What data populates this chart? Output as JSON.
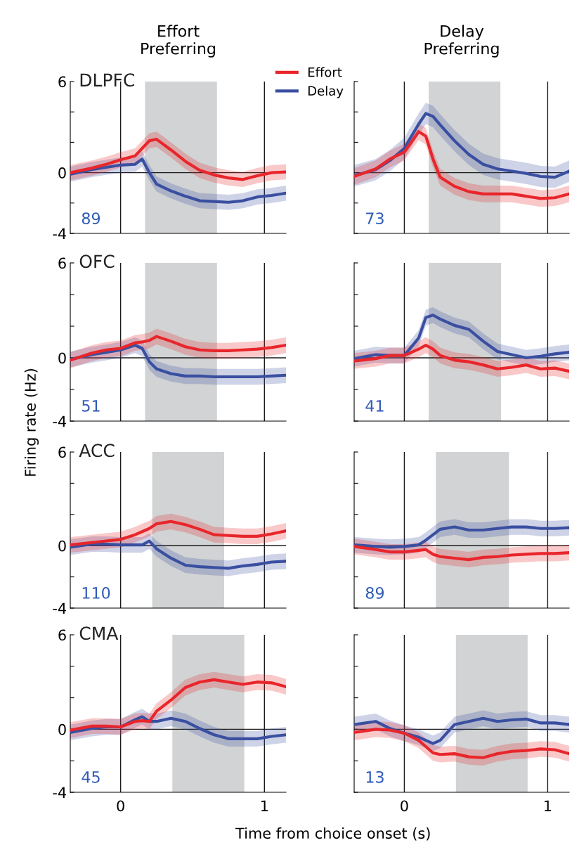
{
  "chart_data": [
    {
      "type": "line",
      "title": "Effort\nPreferring",
      "legend": "top right",
      "annotations": [
        "DLPFC",
        "89"
      ],
      "tick_labels": "y",
      "x": [
        -0.35,
        -0.2,
        -0.1,
        0,
        0.1,
        0.15,
        0.2,
        0.25,
        0.35,
        0.45,
        0.55,
        0.65,
        0.75,
        0.85,
        0.95,
        1.05,
        1.15
      ],
      "xlim": [
        -0.35,
        1.15
      ],
      "xticks": [
        0,
        1
      ],
      "ylim": [
        -4,
        6
      ],
      "yticks": [
        -4,
        {
          "value": -2,
          "label": null
        },
        0,
        {
          "value": 2,
          "label": null
        },
        {
          "value": 4,
          "label": null
        },
        6
      ],
      "ref_lines": [
        {
          "axis": "x",
          "value": 0
        },
        {
          "axis": "x",
          "value": 1
        },
        {
          "axis": "y",
          "value": 0
        }
      ],
      "bands": [
        {
          "axis": "x",
          "from": 0.17,
          "to": 0.67,
          "color": "#d1d3d4"
        }
      ],
      "series": [
        {
          "name": "Delay",
          "color": "#3a4fa0",
          "values": [
            -0.1,
            0.2,
            0.35,
            0.5,
            0.55,
            0.9,
            0,
            -0.75,
            -1.2,
            -1.55,
            -1.85,
            -1.9,
            -1.95,
            -1.85,
            -1.6,
            -1.5,
            -1.35
          ],
          "lower": [
            -0.6,
            -0.3,
            -0.15,
            0,
            0.05,
            0.4,
            -0.5,
            -1.25,
            -1.7,
            -2.05,
            -2.35,
            -2.4,
            -2.45,
            -2.35,
            -2.1,
            -2,
            -1.85
          ],
          "upper": [
            0.4,
            0.7,
            0.85,
            1,
            1.05,
            1.4,
            0.5,
            -0.25,
            -0.7,
            -1.05,
            -1.35,
            -1.4,
            -1.45,
            -1.35,
            -1.1,
            -1,
            -0.85
          ]
        },
        {
          "name": "Effort",
          "color": "#e8262b",
          "values": [
            0,
            0.3,
            0.55,
            0.85,
            1.1,
            1.6,
            2.1,
            2.2,
            1.5,
            0.75,
            0.15,
            -0.15,
            -0.35,
            -0.45,
            -0.2,
            0,
            0.05
          ],
          "lower": [
            -0.5,
            -0.2,
            0.05,
            0.35,
            0.6,
            1.1,
            1.6,
            1.7,
            1.0,
            0.25,
            -0.35,
            -0.65,
            -0.85,
            -0.95,
            -0.7,
            -0.5,
            -0.45
          ],
          "upper": [
            0.5,
            0.8,
            1.05,
            1.35,
            1.6,
            2.1,
            2.6,
            2.7,
            2.0,
            1.25,
            0.65,
            0.35,
            0.15,
            0.05,
            0.3,
            0.5,
            0.55
          ]
        }
      ]
    },
    {
      "type": "line",
      "title": "Delay\nPreferring",
      "annotations": [
        "73"
      ],
      "tick_labels": false,
      "x": [
        -0.35,
        -0.2,
        -0.1,
        0,
        0.1,
        0.15,
        0.2,
        0.25,
        0.35,
        0.45,
        0.55,
        0.65,
        0.75,
        0.85,
        0.95,
        1.05,
        1.15
      ],
      "xlim": [
        -0.35,
        1.15
      ],
      "xticks": [
        0,
        1
      ],
      "ylim": [
        -4,
        6
      ],
      "yticks": [
        -4,
        {
          "value": -2,
          "label": null
        },
        0,
        {
          "value": 2,
          "label": null
        },
        {
          "value": 4,
          "label": null
        },
        6
      ],
      "ref_lines": [
        {
          "axis": "x",
          "value": 0
        },
        {
          "axis": "x",
          "value": 1
        },
        {
          "axis": "y",
          "value": 0
        }
      ],
      "bands": [
        {
          "axis": "x",
          "from": 0.17,
          "to": 0.67,
          "color": "#d1d3d4"
        }
      ],
      "series": [
        {
          "color": "#3a4fa0",
          "values": [
            -0.2,
            0.2,
            0.8,
            1.6,
            3.2,
            3.9,
            3.7,
            3.15,
            2.1,
            1.2,
            0.55,
            0.25,
            0.1,
            -0.05,
            -0.25,
            -0.3,
            0.1
          ],
          "lower": [
            -0.9,
            -0.5,
            0.1,
            0.9,
            2.5,
            3.2,
            3,
            2.45,
            1.4,
            0.5,
            -0.15,
            -0.45,
            -0.6,
            -0.75,
            -0.95,
            -1,
            -0.6
          ],
          "upper": [
            0.5,
            0.9,
            1.5,
            2.3,
            3.9,
            4.6,
            4.4,
            3.85,
            2.8,
            1.9,
            1.25,
            0.95,
            0.8,
            0.65,
            0.45,
            0.4,
            0.8
          ]
        },
        {
          "color": "#e8262b",
          "values": [
            -0.25,
            0.25,
            0.9,
            1.35,
            2.7,
            2.4,
            0.9,
            -0.3,
            -0.9,
            -1.25,
            -1.4,
            -1.4,
            -1.4,
            -1.55,
            -1.7,
            -1.65,
            -1.4
          ],
          "lower": [
            -0.8,
            -0.3,
            0.35,
            0.8,
            2.15,
            1.85,
            0.35,
            -0.85,
            -1.45,
            -1.8,
            -1.95,
            -1.95,
            -1.95,
            -2.1,
            -2.25,
            -2.2,
            -1.95
          ],
          "upper": [
            0.3,
            0.8,
            1.45,
            1.9,
            3.25,
            2.95,
            1.45,
            0.25,
            -0.35,
            -0.7,
            -0.85,
            -0.85,
            -0.85,
            -1,
            -1.15,
            -1.1,
            -0.85
          ]
        }
      ]
    },
    {
      "type": "line",
      "ylabel": "Firing rate (Hz)",
      "annotations": [
        "OFC",
        "51"
      ],
      "tick_labels": "y",
      "x": [
        -0.35,
        -0.2,
        -0.1,
        0,
        0.1,
        0.15,
        0.2,
        0.25,
        0.35,
        0.45,
        0.55,
        0.65,
        0.75,
        0.85,
        0.95,
        1.05,
        1.15
      ],
      "xlim": [
        -0.35,
        1.15
      ],
      "xticks": [
        0,
        1
      ],
      "ylim": [
        -4,
        6
      ],
      "yticks": [
        -4,
        {
          "value": -2,
          "label": null
        },
        0,
        {
          "value": 2,
          "label": null
        },
        {
          "value": 4,
          "label": null
        },
        6
      ],
      "ref_lines": [
        {
          "axis": "x",
          "value": 0
        },
        {
          "axis": "x",
          "value": 1
        },
        {
          "axis": "y",
          "value": 0
        }
      ],
      "bands": [
        {
          "axis": "x",
          "from": 0.17,
          "to": 0.67,
          "color": "#d1d3d4"
        }
      ],
      "series": [
        {
          "color": "#3a4fa0",
          "values": [
            -0.1,
            0.2,
            0.35,
            0.5,
            0.8,
            0.6,
            -0.25,
            -0.7,
            -1,
            -1.15,
            -1.15,
            -1.2,
            -1.2,
            -1.2,
            -1.2,
            -1.15,
            -1.1
          ],
          "lower": [
            -0.6,
            -0.3,
            -0.15,
            0,
            0.3,
            0.1,
            -0.75,
            -1.2,
            -1.5,
            -1.65,
            -1.65,
            -1.7,
            -1.7,
            -1.7,
            -1.7,
            -1.65,
            -1.6
          ],
          "upper": [
            0.4,
            0.7,
            0.85,
            1,
            1.3,
            1.1,
            0.25,
            -0.2,
            -0.5,
            -0.65,
            -0.65,
            -0.7,
            -0.7,
            -0.7,
            -0.7,
            -0.65,
            -0.6
          ]
        },
        {
          "color": "#e8262b",
          "values": [
            -0.15,
            0.3,
            0.5,
            0.6,
            0.95,
            1,
            1.1,
            1.35,
            1.05,
            0.7,
            0.5,
            0.45,
            0.45,
            0.5,
            0.55,
            0.65,
            0.8
          ],
          "lower": [
            -0.65,
            -0.2,
            0,
            0.1,
            0.45,
            0.5,
            0.6,
            0.85,
            0.55,
            0.2,
            0,
            -0.05,
            -0.05,
            0,
            0.05,
            0.15,
            0.3
          ],
          "upper": [
            0.35,
            0.8,
            1,
            1.1,
            1.45,
            1.5,
            1.6,
            1.85,
            1.55,
            1.2,
            1,
            0.95,
            0.95,
            1,
            1.05,
            1.15,
            1.3
          ]
        }
      ]
    },
    {
      "type": "line",
      "annotations": [
        "41"
      ],
      "tick_labels": false,
      "x": [
        -0.35,
        -0.2,
        -0.1,
        0,
        0.1,
        0.15,
        0.2,
        0.25,
        0.35,
        0.45,
        0.55,
        0.65,
        0.75,
        0.85,
        0.95,
        1.05,
        1.15
      ],
      "xlim": [
        -0.35,
        1.15
      ],
      "xticks": [
        0,
        1
      ],
      "ylim": [
        -4,
        6
      ],
      "yticks": [
        -4,
        {
          "value": -2,
          "label": null
        },
        0,
        {
          "value": 2,
          "label": null
        },
        {
          "value": 4,
          "label": null
        },
        6
      ],
      "ref_lines": [
        {
          "axis": "x",
          "value": 0
        },
        {
          "axis": "x",
          "value": 1
        },
        {
          "axis": "y",
          "value": 0
        }
      ],
      "bands": [
        {
          "axis": "x",
          "from": 0.17,
          "to": 0.675,
          "color": "#d1d3d4"
        }
      ],
      "series": [
        {
          "color": "#3a4fa0",
          "values": [
            -0.05,
            0.2,
            0.15,
            0.15,
            1.25,
            2.55,
            2.7,
            2.45,
            2.05,
            1.8,
            1.05,
            0.4,
            0.2,
            0,
            0.1,
            0.25,
            0.35
          ],
          "lower": [
            -0.55,
            -0.3,
            -0.35,
            -0.35,
            0.75,
            2.05,
            2.2,
            1.95,
            1.55,
            1.3,
            0.55,
            -0.1,
            -0.3,
            -0.5,
            -0.4,
            -0.25,
            -0.15
          ],
          "upper": [
            0.45,
            0.7,
            0.65,
            0.65,
            1.75,
            3.05,
            3.2,
            2.95,
            2.55,
            2.3,
            1.55,
            0.9,
            0.7,
            0.5,
            0.6,
            0.75,
            0.85
          ]
        },
        {
          "color": "#e8262b",
          "values": [
            -0.2,
            -0.05,
            0.15,
            0.15,
            0.55,
            0.8,
            0.55,
            0.15,
            -0.15,
            -0.25,
            -0.45,
            -0.7,
            -0.6,
            -0.45,
            -0.7,
            -0.65,
            -0.85
          ],
          "lower": [
            -0.7,
            -0.55,
            -0.35,
            -0.35,
            0.05,
            0.3,
            0.05,
            -0.35,
            -0.65,
            -0.75,
            -0.95,
            -1.2,
            -1.1,
            -0.95,
            -1.2,
            -1.15,
            -1.35
          ],
          "upper": [
            0.3,
            0.45,
            0.65,
            0.65,
            1.05,
            1.3,
            1.05,
            0.65,
            0.35,
            0.25,
            0.05,
            -0.2,
            -0.1,
            0.05,
            -0.2,
            -0.15,
            -0.35
          ]
        }
      ]
    },
    {
      "type": "line",
      "annotations": [
        "ACC",
        "110"
      ],
      "tick_labels": "y",
      "x": [
        -0.35,
        -0.2,
        -0.1,
        0,
        0.1,
        0.15,
        0.2,
        0.25,
        0.35,
        0.45,
        0.55,
        0.65,
        0.75,
        0.85,
        0.95,
        1.05,
        1.15
      ],
      "xlim": [
        -0.35,
        1.15
      ],
      "xticks": [
        0,
        1
      ],
      "ylim": [
        -4,
        6
      ],
      "yticks": [
        -4,
        {
          "value": -2,
          "label": null
        },
        0,
        {
          "value": 2,
          "label": null
        },
        {
          "value": 4,
          "label": null
        },
        6
      ],
      "ref_lines": [
        {
          "axis": "x",
          "value": 0
        },
        {
          "axis": "x",
          "value": 1
        },
        {
          "axis": "y",
          "value": 0
        }
      ],
      "bands": [
        {
          "axis": "x",
          "from": 0.22,
          "to": 0.72,
          "color": "#d1d3d4"
        }
      ],
      "series": [
        {
          "color": "#3a4fa0",
          "values": [
            -0.1,
            0.1,
            0.1,
            0.05,
            0.05,
            0.05,
            0.3,
            -0.2,
            -0.8,
            -1.25,
            -1.35,
            -1.4,
            -1.45,
            -1.3,
            -1.2,
            -1.05,
            -1
          ],
          "lower": [
            -0.6,
            -0.4,
            -0.4,
            -0.45,
            -0.45,
            -0.45,
            -0.2,
            -0.7,
            -1.3,
            -1.75,
            -1.85,
            -1.9,
            -1.95,
            -1.8,
            -1.7,
            -1.55,
            -1.5
          ],
          "upper": [
            0.4,
            0.6,
            0.6,
            0.55,
            0.55,
            0.55,
            0.8,
            0.3,
            -0.3,
            -0.75,
            -0.85,
            -0.9,
            -0.95,
            -0.8,
            -0.7,
            -0.55,
            -0.5
          ]
        },
        {
          "color": "#e8262b",
          "values": [
            0.05,
            0.2,
            0.3,
            0.4,
            0.7,
            0.9,
            1.1,
            1.4,
            1.55,
            1.35,
            1.05,
            0.7,
            0.65,
            0.6,
            0.6,
            0.75,
            0.95
          ],
          "lower": [
            -0.45,
            -0.3,
            -0.2,
            -0.1,
            0.2,
            0.4,
            0.6,
            0.9,
            1.05,
            0.85,
            0.55,
            0.2,
            0.15,
            0.1,
            0.1,
            0.25,
            0.45
          ],
          "upper": [
            0.55,
            0.7,
            0.8,
            0.9,
            1.2,
            1.4,
            1.6,
            1.9,
            2.05,
            1.85,
            1.55,
            1.2,
            1.15,
            1.1,
            1.1,
            1.25,
            1.45
          ]
        }
      ]
    },
    {
      "type": "line",
      "annotations": [
        "89"
      ],
      "tick_labels": false,
      "x": [
        -0.35,
        -0.2,
        -0.1,
        0,
        0.1,
        0.15,
        0.2,
        0.25,
        0.35,
        0.45,
        0.55,
        0.65,
        0.75,
        0.85,
        0.95,
        1.05,
        1.15
      ],
      "xlim": [
        -0.35,
        1.15
      ],
      "xticks": [
        0,
        1
      ],
      "ylim": [
        -4,
        6
      ],
      "yticks": [
        -4,
        {
          "value": -2,
          "label": null
        },
        0,
        {
          "value": 2,
          "label": null
        },
        {
          "value": 4,
          "label": null
        },
        6
      ],
      "ref_lines": [
        {
          "axis": "x",
          "value": 0
        },
        {
          "axis": "x",
          "value": 1
        },
        {
          "axis": "y",
          "value": 0
        }
      ],
      "bands": [
        {
          "axis": "x",
          "from": 0.22,
          "to": 0.73,
          "color": "#d1d3d4"
        }
      ],
      "series": [
        {
          "color": "#3a4fa0",
          "values": [
            0.05,
            -0.05,
            -0.1,
            -0.05,
            0.05,
            0.35,
            0.7,
            1.05,
            1.2,
            1,
            1,
            1.1,
            1.2,
            1.2,
            1.1,
            1.1,
            1.15
          ],
          "lower": [
            -0.45,
            -0.55,
            -0.6,
            -0.55,
            -0.45,
            -0.15,
            0.2,
            0.55,
            0.7,
            0.5,
            0.5,
            0.6,
            0.7,
            0.7,
            0.6,
            0.6,
            0.65
          ],
          "upper": [
            0.55,
            0.45,
            0.4,
            0.45,
            0.55,
            0.85,
            1.2,
            1.55,
            1.7,
            1.5,
            1.5,
            1.6,
            1.7,
            1.7,
            1.6,
            1.6,
            1.65
          ]
        },
        {
          "color": "#e8262b",
          "values": [
            -0.05,
            -0.25,
            -0.4,
            -0.4,
            -0.3,
            -0.25,
            -0.55,
            -0.7,
            -0.8,
            -0.9,
            -0.75,
            -0.7,
            -0.6,
            -0.55,
            -0.5,
            -0.5,
            -0.45
          ],
          "lower": [
            -0.55,
            -0.75,
            -0.9,
            -0.9,
            -0.8,
            -0.75,
            -1.05,
            -1.2,
            -1.3,
            -1.4,
            -1.25,
            -1.2,
            -1.1,
            -1.05,
            -1,
            -1,
            -0.95
          ],
          "upper": [
            0.45,
            0.25,
            0.1,
            0.1,
            0.2,
            0.25,
            -0.05,
            -0.2,
            -0.3,
            -0.4,
            -0.25,
            -0.2,
            -0.1,
            -0.05,
            0,
            0,
            0.05
          ]
        }
      ]
    },
    {
      "type": "line",
      "xlabel": "Time from choice onset (s)",
      "annotations": [
        "CMA",
        "45"
      ],
      "x": [
        -0.35,
        -0.2,
        -0.1,
        0,
        0.1,
        0.15,
        0.2,
        0.25,
        0.35,
        0.45,
        0.55,
        0.65,
        0.75,
        0.85,
        0.95,
        1.05,
        1.15
      ],
      "xlim": [
        -0.35,
        1.15
      ],
      "xticks": [
        0,
        1
      ],
      "ylim": [
        -4,
        6
      ],
      "yticks": [
        -4,
        {
          "value": -2,
          "label": null
        },
        0,
        {
          "value": 2,
          "label": null
        },
        {
          "value": 4,
          "label": null
        },
        6
      ],
      "ref_lines": [
        {
          "axis": "x",
          "value": 0
        },
        {
          "axis": "x",
          "value": 1
        },
        {
          "axis": "y",
          "value": 0
        }
      ],
      "bands": [
        {
          "axis": "x",
          "from": 0.36,
          "to": 0.86,
          "color": "#d1d3d4"
        }
      ],
      "series": [
        {
          "color": "#3a4fa0",
          "values": [
            -0.2,
            0.05,
            0.15,
            0.15,
            0.6,
            0.8,
            0.5,
            0.5,
            0.7,
            0.5,
            0.05,
            -0.35,
            -0.6,
            -0.6,
            -0.6,
            -0.45,
            -0.35
          ],
          "lower": [
            -0.7,
            -0.45,
            -0.35,
            -0.35,
            0.1,
            0.3,
            0,
            0,
            0.2,
            0,
            -0.45,
            -0.85,
            -1.1,
            -1.1,
            -1.1,
            -0.95,
            -0.85
          ],
          "upper": [
            0.3,
            0.55,
            0.65,
            0.65,
            1.1,
            1.3,
            1,
            1,
            1.2,
            1,
            0.55,
            0.15,
            -0.1,
            -0.1,
            -0.1,
            0.05,
            0.15
          ]
        },
        {
          "color": "#e8262b",
          "values": [
            -0.05,
            0.2,
            0.2,
            0.15,
            0.5,
            0.55,
            0.5,
            1.15,
            1.85,
            2.65,
            3,
            3.15,
            3,
            2.85,
            3,
            2.95,
            2.7
          ],
          "lower": [
            -0.55,
            -0.3,
            -0.3,
            -0.35,
            0,
            0.05,
            0,
            0.65,
            1.35,
            2.15,
            2.5,
            2.65,
            2.5,
            2.35,
            2.5,
            2.45,
            2.2
          ],
          "upper": [
            0.45,
            0.7,
            0.7,
            0.65,
            1,
            1.05,
            1,
            1.65,
            2.35,
            3.15,
            3.5,
            3.65,
            3.5,
            3.35,
            3.5,
            3.45,
            3.2
          ]
        }
      ]
    },
    {
      "type": "line",
      "annotations": [
        "13"
      ],
      "tick_labels": "x",
      "x": [
        -0.35,
        -0.2,
        -0.1,
        0,
        0.1,
        0.15,
        0.2,
        0.25,
        0.35,
        0.45,
        0.55,
        0.65,
        0.75,
        0.85,
        0.95,
        1.05,
        1.15
      ],
      "xlim": [
        -0.35,
        1.15
      ],
      "xticks": [
        0,
        1
      ],
      "ylim": [
        -4,
        6
      ],
      "yticks": [
        -4,
        {
          "value": -2,
          "label": null
        },
        0,
        {
          "value": 2,
          "label": null
        },
        {
          "value": 4,
          "label": null
        },
        6
      ],
      "ref_lines": [
        {
          "axis": "x",
          "value": 0
        },
        {
          "axis": "x",
          "value": 1
        },
        {
          "axis": "y",
          "value": 0
        }
      ],
      "bands": [
        {
          "axis": "x",
          "from": 0.36,
          "to": 0.86,
          "color": "#d1d3d4"
        }
      ],
      "series": [
        {
          "color": "#3a4fa0",
          "values": [
            0.3,
            0.5,
            0.05,
            -0.25,
            -0.5,
            -0.7,
            -0.9,
            -0.7,
            0.3,
            0.5,
            0.7,
            0.5,
            0.6,
            0.65,
            0.4,
            0.4,
            0.3
          ],
          "lower": [
            -0.2,
            0,
            -0.45,
            -0.75,
            -1,
            -1.2,
            -1.4,
            -1.2,
            -0.2,
            0,
            0.2,
            0,
            0.1,
            0.15,
            -0.1,
            -0.1,
            -0.2
          ],
          "upper": [
            0.8,
            1,
            0.55,
            0.25,
            0,
            -0.2,
            -0.4,
            -0.2,
            0.8,
            1,
            1.2,
            1,
            1.1,
            1.15,
            0.9,
            0.9,
            0.8
          ]
        },
        {
          "color": "#e8262b",
          "values": [
            -0.2,
            0,
            -0.05,
            -0.25,
            -0.7,
            -1.1,
            -1.5,
            -1.6,
            -1.55,
            -1.75,
            -1.8,
            -1.55,
            -1.4,
            -1.35,
            -1.25,
            -1.3,
            -1.55
          ],
          "lower": [
            -0.7,
            -0.5,
            -0.55,
            -0.75,
            -1.2,
            -1.6,
            -2,
            -2.1,
            -2.05,
            -2.25,
            -2.3,
            -2.05,
            -1.9,
            -1.85,
            -1.75,
            -1.8,
            -2.05
          ],
          "upper": [
            0.3,
            0.5,
            0.45,
            0.25,
            -0.2,
            -0.6,
            -1,
            -1.1,
            -1.05,
            -1.25,
            -1.3,
            -1.05,
            -0.9,
            -0.85,
            -0.75,
            -0.8,
            -1.05
          ]
        }
      ]
    }
  ]
}
